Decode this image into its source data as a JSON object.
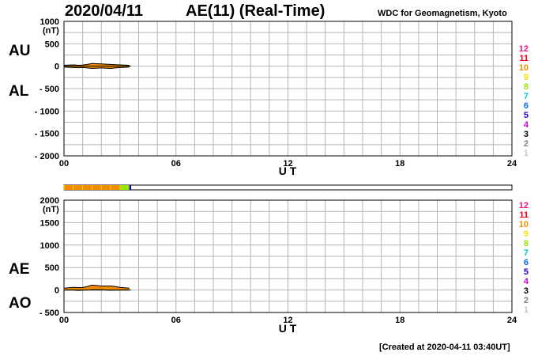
{
  "header": {
    "date": "2020/04/11",
    "title": "AE(11) (Real-Time)",
    "source": "WDC for Geomagnetism, Kyoto"
  },
  "footer": {
    "created": "[Created at 2020-04-11 03:40UT]"
  },
  "station_count_colors": {
    "12": "#e8197d",
    "11": "#e6001a",
    "10": "#f08c00",
    "9": "#f5e100",
    "8": "#9be600",
    "7": "#00c8c8",
    "6": "#0070e6",
    "5": "#1a00c8",
    "4": "#c800c8",
    "3": "#000000",
    "2": "#808080",
    "1": "#c8c8c8"
  },
  "chart_data": [
    {
      "type": "line",
      "panel": "AU/AL",
      "side_labels": {
        "upper": "AU",
        "lower": "AL"
      },
      "ylabel": "(nT)",
      "ylim": [
        -2000,
        1000
      ],
      "y_ticks": [
        1000,
        500,
        0,
        -500,
        -1000,
        -1500,
        -2000
      ],
      "y_tick_labels": [
        "1000",
        "500",
        "0",
        "- 500",
        "- 1000",
        "- 1500",
        "- 2000"
      ],
      "xlim": [
        0,
        24
      ],
      "x_ticks": [
        0,
        6,
        12,
        18,
        24
      ],
      "x_tick_labels": [
        "00",
        "06",
        "12",
        "18",
        "24"
      ],
      "xlabel": "U T",
      "grid": true,
      "legend_labels": [
        "12",
        "11",
        "10",
        "9",
        "8",
        "7",
        "6",
        "5",
        "4",
        "3",
        "2",
        "1"
      ],
      "legend_placement": "right",
      "x": [
        0.0,
        0.25,
        0.5,
        0.75,
        1.0,
        1.25,
        1.5,
        1.75,
        2.0,
        2.25,
        2.5,
        2.75,
        3.0,
        3.25,
        3.5
      ],
      "series": [
        {
          "name": "AU",
          "values": [
            20,
            25,
            30,
            20,
            25,
            40,
            60,
            55,
            50,
            45,
            40,
            35,
            30,
            25,
            20
          ]
        },
        {
          "name": "AL",
          "values": [
            -20,
            -25,
            -30,
            -35,
            -30,
            -40,
            -50,
            -45,
            -40,
            -45,
            -50,
            -40,
            -30,
            -25,
            -20
          ]
        }
      ]
    },
    {
      "type": "line",
      "panel": "AE/AO",
      "side_labels": {
        "upper": "AE",
        "lower": "AO"
      },
      "ylabel": "(nT)",
      "ylim": [
        -500,
        2000
      ],
      "y_ticks": [
        2000,
        1500,
        1000,
        500,
        0,
        -500
      ],
      "y_tick_labels": [
        "2000",
        "1500",
        "1000",
        "500",
        "0",
        "- 500"
      ],
      "xlim": [
        0,
        24
      ],
      "x_ticks": [
        0,
        6,
        12,
        18,
        24
      ],
      "x_tick_labels": [
        "00",
        "06",
        "12",
        "18",
        "24"
      ],
      "xlabel": "U T",
      "grid": true,
      "legend_labels": [
        "12",
        "11",
        "10",
        "9",
        "8",
        "7",
        "6",
        "5",
        "4",
        "3",
        "2",
        "1"
      ],
      "legend_placement": "right",
      "x": [
        0.0,
        0.25,
        0.5,
        0.75,
        1.0,
        1.25,
        1.5,
        1.75,
        2.0,
        2.25,
        2.5,
        2.75,
        3.0,
        3.25,
        3.5
      ],
      "series": [
        {
          "name": "AE",
          "values": [
            40,
            50,
            60,
            55,
            55,
            80,
            110,
            100,
            90,
            90,
            90,
            75,
            60,
            50,
            40
          ]
        },
        {
          "name": "AO",
          "values": [
            0,
            0,
            0,
            -8,
            -3,
            0,
            5,
            5,
            5,
            0,
            -5,
            -3,
            0,
            0,
            0
          ]
        }
      ]
    }
  ],
  "station_bar": {
    "xlim": [
      0,
      24
    ],
    "segments": [
      {
        "start": 0.0,
        "end": 3.0,
        "count": 10
      },
      {
        "start": 3.0,
        "end": 3.5,
        "count": 8
      },
      {
        "start": 3.5,
        "end": 3.6,
        "count": 5
      }
    ]
  }
}
